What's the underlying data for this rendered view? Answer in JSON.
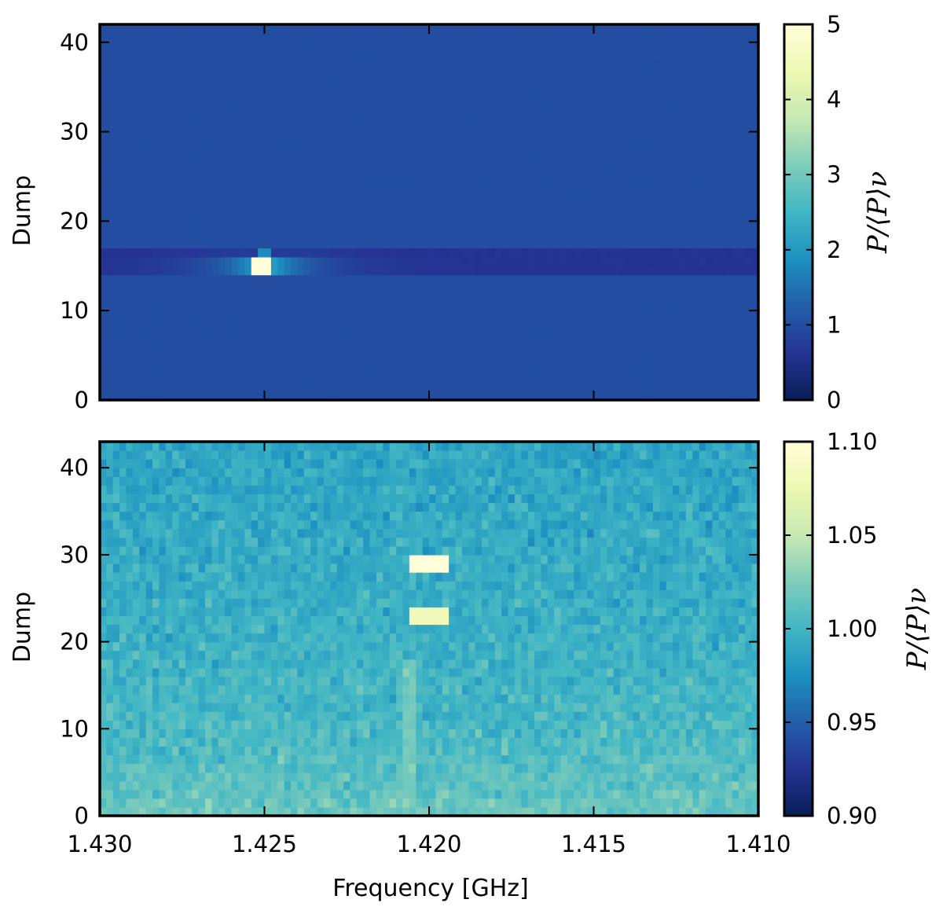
{
  "chart_data": [
    {
      "type": "heatmap",
      "panel": "top",
      "title": "",
      "xlabel": "",
      "ylabel": "Dump",
      "x_range": [
        1.43,
        1.41
      ],
      "x_ticks": [
        1.43,
        1.425,
        1.42,
        1.415,
        1.41
      ],
      "y_range": [
        0,
        42
      ],
      "y_ticks": [
        0,
        10,
        20,
        30,
        40
      ],
      "y_tick_labels": [
        "0",
        "10",
        "20",
        "30",
        "40"
      ],
      "colormap": "YlGnBu",
      "colorbar": {
        "label": "P/⟨P⟩ν",
        "range": [
          0,
          5
        ],
        "ticks": [
          0,
          1,
          2,
          3,
          4,
          5
        ],
        "tick_labels": [
          "0",
          "1",
          "2",
          "3",
          "4",
          "5"
        ]
      },
      "background_level": 1.0,
      "features": [
        {
          "kind": "dip-band",
          "dump_range": [
            14,
            17
          ],
          "level": 0.6
        },
        {
          "kind": "bright-spot",
          "frequency_ghz": 1.425,
          "dump_range": [
            14,
            16
          ],
          "level": 5.0
        }
      ]
    },
    {
      "type": "heatmap",
      "panel": "bottom",
      "title": "",
      "xlabel": "Frequency [GHz]",
      "ylabel": "Dump",
      "x_range": [
        1.43,
        1.41
      ],
      "x_ticks": [
        1.43,
        1.425,
        1.42,
        1.415,
        1.41
      ],
      "x_tick_labels": [
        "1.430",
        "1.425",
        "1.420",
        "1.415",
        "1.410"
      ],
      "y_range": [
        0,
        43
      ],
      "y_ticks": [
        0,
        10,
        20,
        30,
        40
      ],
      "y_tick_labels": [
        "0",
        "10",
        "20",
        "30",
        "40"
      ],
      "colormap": "YlGnBu",
      "colorbar": {
        "label": "P/⟨P⟩ν",
        "range": [
          0.9,
          1.1
        ],
        "ticks": [
          0.9,
          0.95,
          1.0,
          1.05,
          1.1
        ],
        "tick_labels": [
          "0.90",
          "0.95",
          "1.00",
          "1.05",
          "1.10"
        ]
      },
      "background_level": 1.0,
      "features": [
        {
          "kind": "bright-spot",
          "frequency_ghz": 1.42,
          "dump": 29,
          "level": 1.1
        },
        {
          "kind": "bright-spot",
          "frequency_ghz": 1.42,
          "dump": 23,
          "level": 1.08
        },
        {
          "kind": "faint-line",
          "frequency_ghz": 1.4205,
          "level": 1.02
        }
      ]
    }
  ]
}
